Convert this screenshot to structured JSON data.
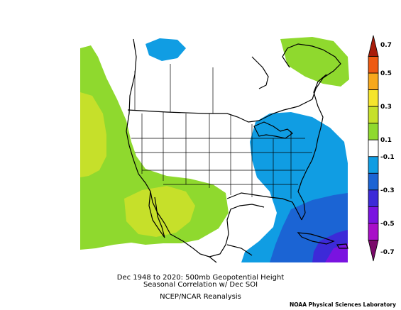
{
  "title_line1": "Dec 1948 to 2020: 500mb Geopotential Height",
  "title_line2": "Seasonal Correlation w/ Dec SOI",
  "subtitle": "NCEP/NCAR Reanalysis",
  "credit": "NOAA Physical Sciences Laboratory",
  "colorbar": {
    "ticks": [
      "0.7",
      "0.5",
      "0.3",
      "0.1",
      "-0.1",
      "-0.3",
      "-0.5",
      "-0.7"
    ],
    "bins": [
      {
        "range": "0.6 to 0.7",
        "color": "#a81c0a"
      },
      {
        "range": "0.5 to 0.6",
        "color": "#ee5a12"
      },
      {
        "range": "0.4 to 0.5",
        "color": "#f7a81c"
      },
      {
        "range": "0.3 to 0.4",
        "color": "#f5e52c"
      },
      {
        "range": "0.2 to 0.3",
        "color": "#c6e02a"
      },
      {
        "range": "0.1 to 0.2",
        "color": "#8fd92e"
      },
      {
        "range": "-0.1 to 0.1",
        "color": "#ffffff"
      },
      {
        "range": "-0.2 to -0.1",
        "color": "#109de3"
      },
      {
        "range": "-0.3 to -0.2",
        "color": "#1b64d4"
      },
      {
        "range": "-0.4 to -0.3",
        "color": "#3c2ad8"
      },
      {
        "range": "-0.5 to -0.4",
        "color": "#7a13e0"
      },
      {
        "range": "-0.6 to -0.5",
        "color": "#a80fc8"
      },
      {
        "range": "-0.7 to -0.6",
        "color": "#7a0a6a"
      }
    ]
  },
  "map_colors": {
    "positive_0p1": "#8fd92e",
    "positive_0p2": "#c6e02a",
    "negative_0p1": "#109de3",
    "negative_0p2": "#1b64d4",
    "negative_0p3": "#3c2ad8",
    "negative_0p4": "#7a13e0",
    "neutral": "#ffffff",
    "coastline": "#000000"
  }
}
